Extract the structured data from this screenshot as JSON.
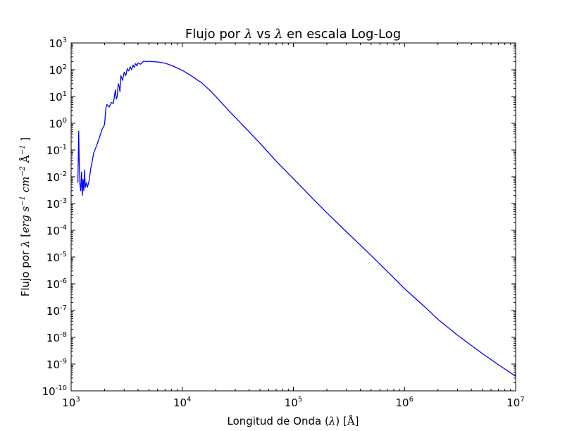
{
  "chart_data": {
    "type": "line",
    "title_parts": [
      "Flujo por ",
      "λ",
      " vs ",
      "λ",
      " en escala Log-Log"
    ],
    "xlabel_parts": [
      "Longitud de Onda (",
      "λ",
      ") [",
      "Å",
      "]"
    ],
    "ylabel_parts": [
      "Flujo por ",
      "λ",
      " [",
      "erg s",
      "−1",
      " cm",
      "−2",
      " Å",
      "−1",
      " ]"
    ],
    "xscale": "log",
    "yscale": "log",
    "xlim": [
      1000,
      10000000
    ],
    "ylim": [
      1e-10,
      1000
    ],
    "grid": false,
    "x_ticks": [
      {
        "base": "10",
        "exp": "3",
        "value": 1000
      },
      {
        "base": "10",
        "exp": "4",
        "value": 10000
      },
      {
        "base": "10",
        "exp": "5",
        "value": 100000
      },
      {
        "base": "10",
        "exp": "6",
        "value": 1000000
      },
      {
        "base": "10",
        "exp": "7",
        "value": 10000000
      }
    ],
    "y_ticks": [
      {
        "base": "10",
        "exp": "-10",
        "value": 1e-10
      },
      {
        "base": "10",
        "exp": "-9",
        "value": 1e-09
      },
      {
        "base": "10",
        "exp": "-8",
        "value": 1e-08
      },
      {
        "base": "10",
        "exp": "-7",
        "value": 1e-07
      },
      {
        "base": "10",
        "exp": "-6",
        "value": 1e-06
      },
      {
        "base": "10",
        "exp": "-5",
        "value": 1e-05
      },
      {
        "base": "10",
        "exp": "-4",
        "value": 0.0001
      },
      {
        "base": "10",
        "exp": "-3",
        "value": 0.001
      },
      {
        "base": "10",
        "exp": "-2",
        "value": 0.01
      },
      {
        "base": "10",
        "exp": "-1",
        "value": 0.1
      },
      {
        "base": "10",
        "exp": "0",
        "value": 1
      },
      {
        "base": "10",
        "exp": "1",
        "value": 10
      },
      {
        "base": "10",
        "exp": "2",
        "value": 100
      },
      {
        "base": "10",
        "exp": "3",
        "value": 1000
      }
    ],
    "series": [
      {
        "color": "#0000ff",
        "points": [
          [
            1150,
            0.006
          ],
          [
            1170,
            0.5
          ],
          [
            1180,
            0.05
          ],
          [
            1200,
            0.005
          ],
          [
            1220,
            0.003
          ],
          [
            1240,
            0.015
          ],
          [
            1260,
            0.002
          ],
          [
            1280,
            0.008
          ],
          [
            1300,
            0.003
          ],
          [
            1320,
            0.018
          ],
          [
            1340,
            0.004
          ],
          [
            1370,
            0.006
          ],
          [
            1400,
            0.004
          ],
          [
            1450,
            0.007
          ],
          [
            1500,
            0.02
          ],
          [
            1550,
            0.04
          ],
          [
            1600,
            0.08
          ],
          [
            1700,
            0.15
          ],
          [
            1800,
            0.3
          ],
          [
            1900,
            0.6
          ],
          [
            2000,
            0.9
          ],
          [
            2050,
            3.5
          ],
          [
            2100,
            5.0
          ],
          [
            2200,
            4.0
          ],
          [
            2300,
            6.0
          ],
          [
            2400,
            5.5
          ],
          [
            2500,
            18
          ],
          [
            2550,
            8
          ],
          [
            2600,
            10
          ],
          [
            2650,
            30
          ],
          [
            2700,
            25
          ],
          [
            2750,
            15
          ],
          [
            2800,
            60
          ],
          [
            2900,
            40
          ],
          [
            3000,
            80
          ],
          [
            3100,
            60
          ],
          [
            3200,
            110
          ],
          [
            3300,
            90
          ],
          [
            3400,
            130
          ],
          [
            3500,
            100
          ],
          [
            3600,
            150
          ],
          [
            3700,
            120
          ],
          [
            3800,
            170
          ],
          [
            3900,
            140
          ],
          [
            4000,
            180
          ],
          [
            4200,
            160
          ],
          [
            4500,
            210
          ],
          [
            4800,
            200
          ],
          [
            5000,
            205
          ],
          [
            5500,
            200
          ],
          [
            6000,
            195
          ],
          [
            7000,
            175
          ],
          [
            8000,
            145
          ],
          [
            10000,
            95
          ],
          [
            12000,
            60
          ],
          [
            15000,
            32
          ],
          [
            18000,
            16
          ],
          [
            22000,
            6.5
          ],
          [
            27000,
            2.6
          ],
          [
            35000,
            0.85
          ],
          [
            50000,
            0.18
          ],
          [
            70000,
            0.038
          ],
          [
            100000,
            0.0085
          ],
          [
            150000,
            0.0015
          ],
          [
            200000,
            0.00045
          ],
          [
            300000,
            8.8e-05
          ],
          [
            500000,
            1.15e-05
          ],
          [
            700000,
            2.9e-06
          ],
          [
            1000000,
            6.6e-07
          ],
          [
            1500000,
            1.45e-07
          ],
          [
            2000000,
            4.7e-08
          ],
          [
            3000000,
            1.2e-08
          ],
          [
            5000000,
            2.5e-09
          ],
          [
            7000000,
            9.5e-10
          ],
          [
            10000000,
            3.5e-10
          ]
        ]
      }
    ]
  }
}
